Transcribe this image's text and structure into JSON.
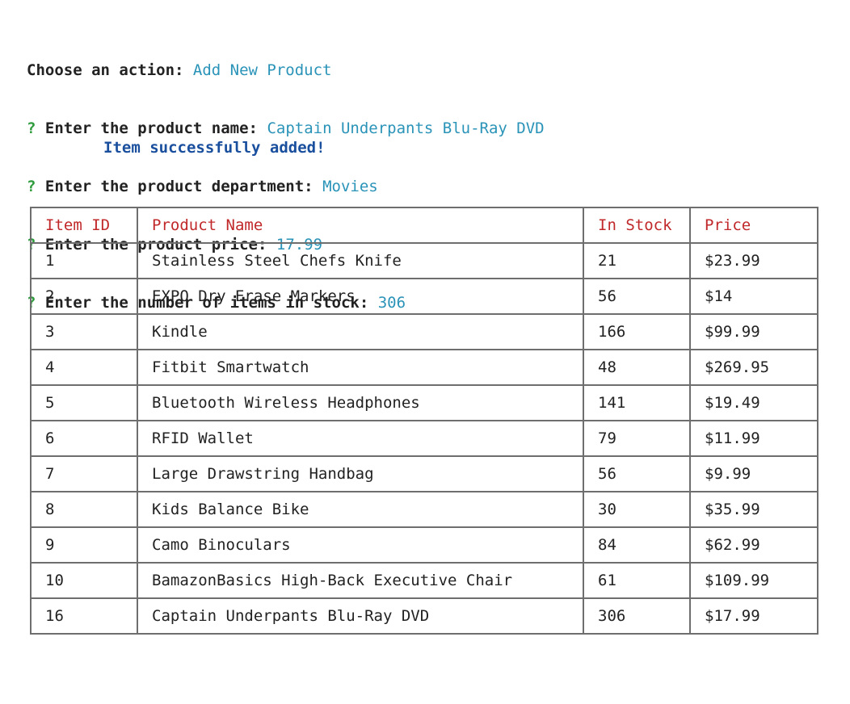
{
  "prompts": {
    "action_label": "Choose an action: ",
    "action_value": "Add New Product",
    "qmark": "? ",
    "name_label": "Enter the product name: ",
    "name_value": "Captain Underpants Blu-Ray DVD",
    "dept_label": "Enter the product department: ",
    "dept_value": "Movies",
    "price_label": "Enter the product price: ",
    "price_value": "17.99",
    "stock_label": "Enter the number of items in stock: ",
    "stock_value": "306"
  },
  "success_message": "Item successfully added!",
  "table": {
    "headers": [
      "Item ID",
      "Product Name",
      "In Stock",
      "Price"
    ],
    "rows": [
      [
        "1",
        "Stainless Steel Chefs Knife",
        "21",
        "$23.99"
      ],
      [
        "2",
        "EXPO Dry Erase Markers",
        "56",
        "$14"
      ],
      [
        "3",
        "Kindle",
        "166",
        "$99.99"
      ],
      [
        "4",
        "Fitbit Smartwatch",
        "48",
        "$269.95"
      ],
      [
        "5",
        "Bluetooth Wireless Headphones",
        "141",
        "$19.49"
      ],
      [
        "6",
        "RFID Wallet",
        "79",
        "$11.99"
      ],
      [
        "7",
        "Large Drawstring Handbag",
        "56",
        "$9.99"
      ],
      [
        "8",
        "Kids Balance Bike",
        "30",
        "$35.99"
      ],
      [
        "9",
        "Camo Binoculars",
        "84",
        "$62.99"
      ],
      [
        "10",
        "BamazonBasics High-Back Executive Chair",
        "61",
        "$109.99"
      ],
      [
        "16",
        "Captain Underpants Blu-Ray DVD",
        "306",
        "$17.99"
      ]
    ]
  },
  "colors": {
    "prompt_qmark": "#2e9b3c",
    "answer": "#2a93b8",
    "success": "#1a4f9e",
    "table_header": "#c0282a",
    "table_border": "#6e6e6e"
  }
}
